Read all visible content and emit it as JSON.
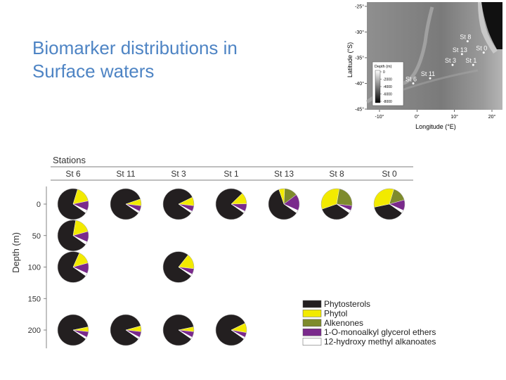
{
  "slide": {
    "title_line1": "Biomarker distributions in",
    "title_line2": "Surface waters"
  },
  "map": {
    "ylabel": "Latitude (°S)",
    "xlabel": "Longitude (°E)",
    "lat_ticks": [
      "-25°",
      "-30°",
      "-35°",
      "-40°",
      "-45°"
    ],
    "lon_ticks": [
      "-10°",
      "0°",
      "10°",
      "20°"
    ],
    "legend_title": "Depth (m)",
    "legend_ticks": [
      "0",
      "-2000",
      "-4000",
      "-6000",
      "-8000"
    ],
    "stations": [
      {
        "name": "St 8",
        "lon": 13.5,
        "lat": -31.8
      },
      {
        "name": "St 0",
        "lon": 17.8,
        "lat": -34.0
      },
      {
        "name": "St 13",
        "lon": 12.0,
        "lat": -34.3
      },
      {
        "name": "St 3",
        "lon": 9.5,
        "lat": -36.4
      },
      {
        "name": "St 1",
        "lon": 15.0,
        "lat": -36.4
      },
      {
        "name": "St 11",
        "lon": 3.5,
        "lat": -39.0
      },
      {
        "name": "St 6",
        "lon": -1.0,
        "lat": -40.0
      }
    ]
  },
  "chart_data": {
    "type": "pie-grid",
    "header": "Stations",
    "ylabel": "Depth (m)",
    "stations": [
      "St 6",
      "St 11",
      "St 3",
      "St 1",
      "St 13",
      "St 8",
      "St 0"
    ],
    "depth_ticks": [
      0,
      50,
      100,
      150,
      200
    ],
    "components": [
      {
        "name": "Phytosterols",
        "color": "#231f20"
      },
      {
        "name": "Phytol",
        "color": "#f2ea00"
      },
      {
        "name": "Alkenones",
        "color": "#7e8b2c"
      },
      {
        "name": "1-O-monoalkyl glycerol ethers",
        "color": "#7a2a8c"
      },
      {
        "name": "12-hydroxy methyl alkanoates",
        "color": "#ffffff"
      }
    ],
    "pies": [
      {
        "station": "St 6",
        "depth": 0,
        "values": [
          70,
          17,
          0,
          10,
          3
        ]
      },
      {
        "station": "St 11",
        "depth": 0,
        "values": [
          85,
          7,
          0,
          6,
          2
        ]
      },
      {
        "station": "St 3",
        "depth": 0,
        "values": [
          83,
          9,
          0,
          6,
          2
        ]
      },
      {
        "station": "St 1",
        "depth": 0,
        "values": [
          78,
          12,
          0,
          8,
          2
        ]
      },
      {
        "station": "St 13",
        "depth": 0,
        "values": [
          60,
          6,
          14,
          17,
          3
        ]
      },
      {
        "station": "St 8",
        "depth": 0,
        "values": [
          35,
          33,
          24,
          5,
          3
        ]
      },
      {
        "station": "St 0",
        "depth": 0,
        "values": [
          37,
          33,
          16,
          11,
          3
        ]
      },
      {
        "station": "St 6",
        "depth": 50,
        "values": [
          68,
          18,
          0,
          11,
          3
        ]
      },
      {
        "station": "St 6",
        "depth": 100,
        "values": [
          72,
          14,
          0,
          11,
          3
        ]
      },
      {
        "station": "St 3",
        "depth": 100,
        "values": [
          76,
          16,
          0,
          6,
          2
        ]
      },
      {
        "station": "St 6",
        "depth": 200,
        "values": [
          87,
          5,
          0,
          6,
          2
        ]
      },
      {
        "station": "St 11",
        "depth": 200,
        "values": [
          86,
          6,
          0,
          6,
          2
        ]
      },
      {
        "station": "St 3",
        "depth": 200,
        "values": [
          87,
          5,
          0,
          6,
          2
        ]
      },
      {
        "station": "St 1",
        "depth": 200,
        "values": [
          83,
          10,
          0,
          5,
          2
        ]
      }
    ]
  }
}
